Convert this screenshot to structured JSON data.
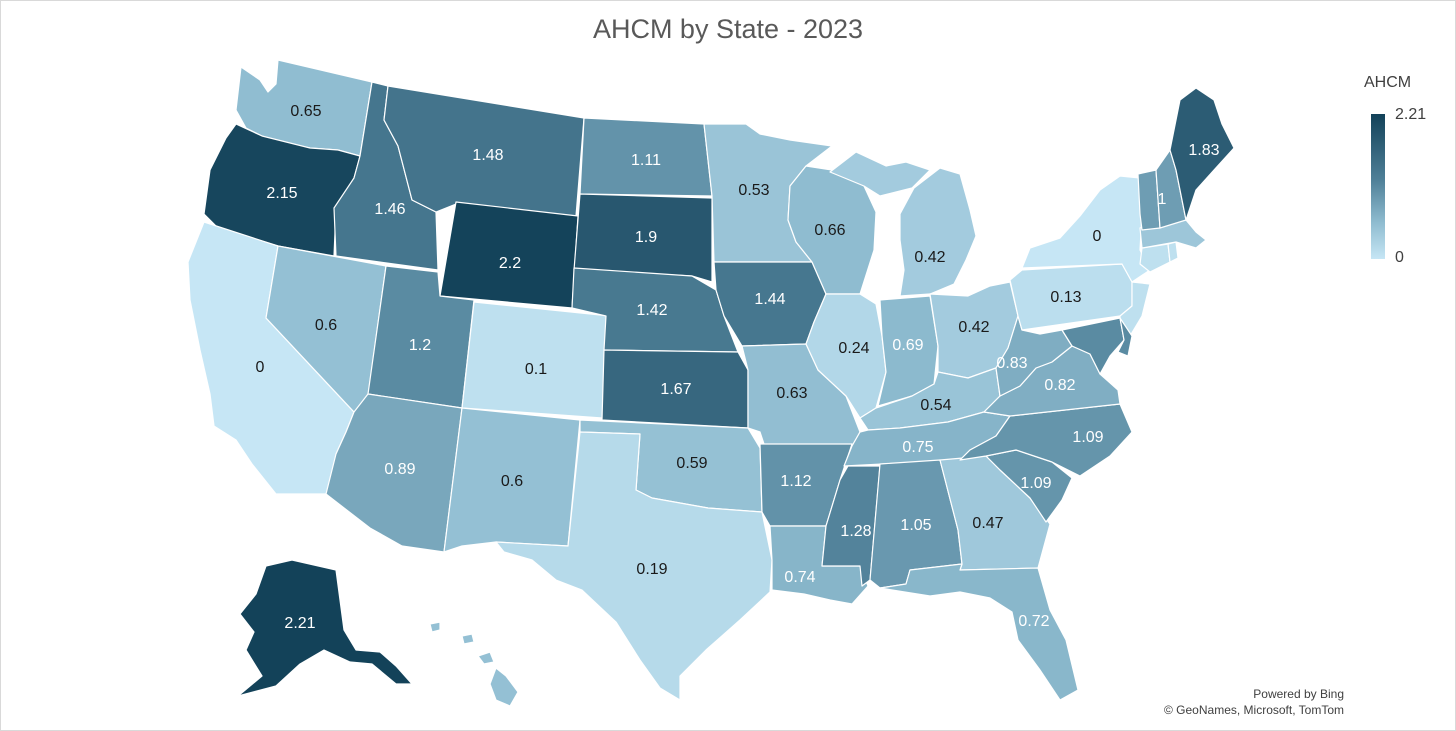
{
  "title": "AHCM by State - 2023",
  "legend": {
    "title": "AHCM",
    "max_label": "2.21",
    "min_label": "0",
    "color_dark": "#134259",
    "color_light": "#c6e6f5"
  },
  "credits": {
    "line1": "Powered by Bing",
    "line2": "© GeoNames, Microsoft, TomTom"
  },
  "map_data": {
    "type": "choropleth",
    "measure": "AHCM",
    "range": [
      0,
      2.21
    ],
    "states": [
      {
        "id": "wa",
        "label": "0.65",
        "value": 0.65
      },
      {
        "id": "or",
        "label": "2.15",
        "value": 2.15
      },
      {
        "id": "ca",
        "label": "0",
        "value": 0
      },
      {
        "id": "id",
        "label": "1.46",
        "value": 1.46
      },
      {
        "id": "nv",
        "label": "0.6",
        "value": 0.6
      },
      {
        "id": "mt",
        "label": "1.48",
        "value": 1.48
      },
      {
        "id": "wy",
        "label": "2.2",
        "value": 2.2
      },
      {
        "id": "ut",
        "label": "1.2",
        "value": 1.2
      },
      {
        "id": "az",
        "label": "0.89",
        "value": 0.89
      },
      {
        "id": "co",
        "label": "0.1",
        "value": 0.1
      },
      {
        "id": "nm",
        "label": "0.6",
        "value": 0.6
      },
      {
        "id": "nd",
        "label": "1.11",
        "value": 1.11
      },
      {
        "id": "sd",
        "label": "1.9",
        "value": 1.9
      },
      {
        "id": "ne",
        "label": "1.42",
        "value": 1.42
      },
      {
        "id": "ks",
        "label": "1.67",
        "value": 1.67
      },
      {
        "id": "ok",
        "label": "0.59",
        "value": 0.59
      },
      {
        "id": "tx",
        "label": "0.19",
        "value": 0.19
      },
      {
        "id": "mn",
        "label": "0.53",
        "value": 0.53
      },
      {
        "id": "ia",
        "label": "1.44",
        "value": 1.44
      },
      {
        "id": "mo",
        "label": "0.63",
        "value": 0.63
      },
      {
        "id": "ar",
        "label": "1.12",
        "value": 1.12
      },
      {
        "id": "la",
        "label": "0.74",
        "value": 0.74
      },
      {
        "id": "wi",
        "label": "0.66",
        "value": 0.66
      },
      {
        "id": "il",
        "label": "0.24",
        "value": 0.24
      },
      {
        "id": "mi",
        "label": "0.42",
        "value": 0.42
      },
      {
        "id": "in",
        "label": "0.69",
        "value": 0.69
      },
      {
        "id": "oh",
        "label": "0.42",
        "value": 0.42
      },
      {
        "id": "ky",
        "label": "0.54",
        "value": 0.54
      },
      {
        "id": "tn",
        "label": "0.75",
        "value": 0.75
      },
      {
        "id": "ms",
        "label": "1.28",
        "value": 1.28
      },
      {
        "id": "al",
        "label": "1.05",
        "value": 1.05
      },
      {
        "id": "ga",
        "label": "0.47",
        "value": 0.47
      },
      {
        "id": "fl",
        "label": "0.72",
        "value": 0.72
      },
      {
        "id": "sc",
        "label": "1.09",
        "value": 1.09
      },
      {
        "id": "nc",
        "label": "1.09",
        "value": 1.09
      },
      {
        "id": "va",
        "label": "0.82",
        "value": 0.82
      },
      {
        "id": "wv",
        "label": "0.83",
        "value": 0.83
      },
      {
        "id": "pa",
        "label": "0.13",
        "value": 0.13
      },
      {
        "id": "ny",
        "label": "0",
        "value": 0
      },
      {
        "id": "nj",
        "label": "",
        "value": 0.1
      },
      {
        "id": "md",
        "label": "",
        "value": 1.2
      },
      {
        "id": "de",
        "label": "",
        "value": 1.2
      },
      {
        "id": "ct",
        "label": "",
        "value": 0.1
      },
      {
        "id": "ri",
        "label": "",
        "value": 0.1
      },
      {
        "id": "ma",
        "label": "",
        "value": 0.5
      },
      {
        "id": "vt",
        "label": "",
        "value": 1.0
      },
      {
        "id": "nh",
        "label": "1",
        "value": 1.0
      },
      {
        "id": "me",
        "label": "1.83",
        "value": 1.83
      },
      {
        "id": "ak",
        "label": "2.21",
        "value": 2.21
      },
      {
        "id": "hi",
        "label": "",
        "value": 0.6
      }
    ]
  }
}
